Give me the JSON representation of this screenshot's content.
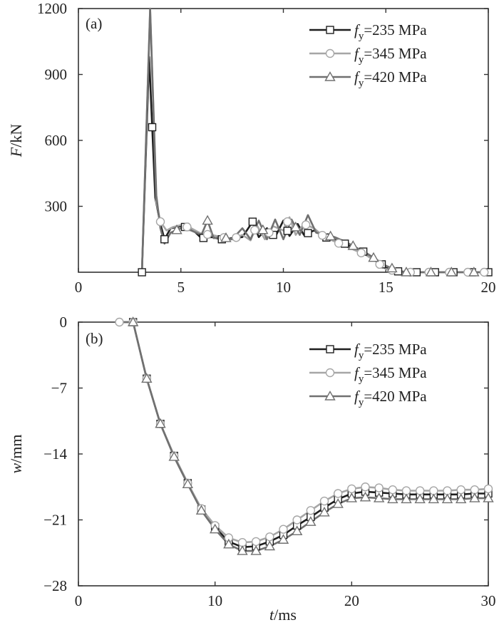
{
  "colors": {
    "s235": "#1e1e1e",
    "s345": "#a6a6a6",
    "s420": "#707070"
  },
  "legend": [
    {
      "key": "s235",
      "italic": "f",
      "sub": "y",
      "rest": "=235 MPa",
      "marker": "square"
    },
    {
      "key": "s345",
      "italic": "f",
      "sub": "y",
      "rest": "=345 MPa",
      "marker": "circle"
    },
    {
      "key": "s420",
      "italic": "f",
      "sub": "y",
      "rest": "=420 MPa",
      "marker": "triangle"
    }
  ],
  "chart_data": [
    {
      "panel_label": "(a)",
      "type": "line",
      "ylabel_italic": "F",
      "ylabel_rest": "/kN",
      "xlim": [
        0,
        20
      ],
      "ylim": [
        0,
        1200
      ],
      "xticks": [
        0,
        5,
        10,
        15,
        20
      ],
      "yticks": [
        300,
        600,
        900,
        1200
      ],
      "legend_position": "top-right",
      "grid": false,
      "series": [
        {
          "key": "s235",
          "name": "fy=235 MPa",
          "points": [
            [
              3.1,
              0
            ],
            [
              3.45,
              980
            ],
            [
              3.75,
              340
            ],
            [
              4.0,
              220
            ],
            [
              4.2,
              150
            ],
            [
              4.5,
              200
            ],
            [
              5,
              210
            ],
            [
              5.5,
              200
            ],
            [
              6,
              155
            ],
            [
              6.5,
              160
            ],
            [
              7,
              150
            ],
            [
              7.5,
              155
            ],
            [
              8,
              160
            ],
            [
              8.5,
              230
            ],
            [
              8.8,
              160
            ],
            [
              9.2,
              200
            ],
            [
              9.6,
              160
            ],
            [
              10,
              235
            ],
            [
              10.3,
              165
            ],
            [
              10.7,
              220
            ],
            [
              11,
              170
            ],
            [
              11.5,
              190
            ],
            [
              12,
              160
            ],
            [
              12.5,
              150
            ],
            [
              13,
              130
            ],
            [
              13.5,
              110
            ],
            [
              14,
              90
            ],
            [
              14.5,
              60
            ],
            [
              15,
              20
            ],
            [
              15.5,
              5
            ],
            [
              16,
              0
            ],
            [
              17,
              0
            ],
            [
              18,
              0
            ],
            [
              19,
              0
            ],
            [
              20,
              0
            ]
          ],
          "markers_x": [
            3.1,
            3.6,
            4.2,
            5.2,
            6.1,
            7.0,
            8.5,
            9.5,
            10.2,
            11.2,
            12.1,
            13.0,
            13.9,
            14.8,
            15.6,
            16.5,
            17.4,
            18.3,
            19.2,
            20
          ]
        },
        {
          "key": "s345",
          "name": "fy=345 MPa",
          "points": [
            [
              3.1,
              0
            ],
            [
              3.5,
              1200
            ],
            [
              3.8,
              320
            ],
            [
              4.0,
              230
            ],
            [
              4.3,
              190
            ],
            [
              4.6,
              205
            ],
            [
              5,
              215
            ],
            [
              5.5,
              200
            ],
            [
              6,
              175
            ],
            [
              6.5,
              170
            ],
            [
              7,
              160
            ],
            [
              7.5,
              150
            ],
            [
              8,
              170
            ],
            [
              8.4,
              145
            ],
            [
              8.7,
              215
            ],
            [
              9.1,
              150
            ],
            [
              9.5,
              210
            ],
            [
              10,
              190
            ],
            [
              10.3,
              250
            ],
            [
              10.6,
              170
            ],
            [
              11,
              220
            ],
            [
              11.5,
              200
            ],
            [
              12,
              160
            ],
            [
              12.5,
              140
            ],
            [
              13,
              120
            ],
            [
              13.5,
              100
            ],
            [
              14,
              80
            ],
            [
              14.5,
              50
            ],
            [
              15,
              15
            ],
            [
              15.5,
              5
            ],
            [
              16,
              0
            ],
            [
              17,
              0
            ],
            [
              18,
              0
            ],
            [
              19,
              0
            ],
            [
              20,
              0
            ]
          ],
          "markers_x": [
            4.0,
            5.3,
            6.3,
            7.1,
            7.7,
            8.6,
            9.3,
            10.2,
            11.1,
            11.9,
            12.7,
            13.8,
            14.7,
            15.3,
            16.2,
            17.1,
            18.1,
            19.0,
            19.8
          ]
        },
        {
          "key": "s420",
          "name": "fy=420 MPa",
          "points": [
            [
              3.1,
              0
            ],
            [
              3.5,
              1200
            ],
            [
              3.8,
              350
            ],
            [
              4.0,
              200
            ],
            [
              4.2,
              130
            ],
            [
              4.5,
              180
            ],
            [
              5,
              200
            ],
            [
              5.5,
              190
            ],
            [
              6,
              170
            ],
            [
              6.3,
              235
            ],
            [
              6.6,
              155
            ],
            [
              7,
              160
            ],
            [
              7.5,
              150
            ],
            [
              8,
              200
            ],
            [
              8.4,
              150
            ],
            [
              8.8,
              235
            ],
            [
              9.2,
              150
            ],
            [
              9.6,
              240
            ],
            [
              10,
              150
            ],
            [
              10.4,
              240
            ],
            [
              10.8,
              170
            ],
            [
              11.2,
              260
            ],
            [
              11.6,
              180
            ],
            [
              12,
              170
            ],
            [
              12.5,
              160
            ],
            [
              13,
              140
            ],
            [
              13.5,
              115
            ],
            [
              14,
              90
            ],
            [
              14.5,
              60
            ],
            [
              15,
              30
            ],
            [
              15.5,
              10
            ],
            [
              16,
              0
            ],
            [
              17,
              0
            ],
            [
              18,
              0
            ],
            [
              19,
              0
            ],
            [
              20,
              0
            ]
          ],
          "markers_x": [
            4.8,
            6.3,
            7.2,
            9.0,
            10.6,
            12.3,
            13.4,
            14.4,
            15.3,
            16.0,
            17.2,
            18.2,
            19.3
          ]
        }
      ]
    },
    {
      "panel_label": "(b)",
      "type": "line",
      "xlabel_italic": "t",
      "xlabel_rest": "/ms",
      "ylabel_italic": "w",
      "ylabel_rest": "/mm",
      "xlim": [
        0,
        30
      ],
      "ylim": [
        -28,
        0
      ],
      "xticks": [
        0,
        10,
        20,
        30
      ],
      "yticks": [
        0,
        -7,
        -14,
        -21,
        -28
      ],
      "ytick_labels": [
        "0",
        "−7",
        "−14",
        "−21",
        "−28"
      ],
      "legend_position": "top-right",
      "grid": false,
      "series": [
        {
          "key": "s235",
          "name": "fy=235 MPa",
          "points": [
            [
              2.8,
              0
            ],
            [
              3.5,
              0
            ],
            [
              4,
              0
            ],
            [
              5,
              -6
            ],
            [
              6,
              -10.8
            ],
            [
              7,
              -14.2
            ],
            [
              8,
              -17.1
            ],
            [
              9,
              -19.9
            ],
            [
              10,
              -21.8
            ],
            [
              11,
              -23.3
            ],
            [
              12,
              -23.9
            ],
            [
              13,
              -23.8
            ],
            [
              14,
              -23.3
            ],
            [
              15,
              -22.6
            ],
            [
              16,
              -21.6
            ],
            [
              17,
              -20.7
            ],
            [
              18,
              -19.7
            ],
            [
              19,
              -18.8
            ],
            [
              20,
              -18.2
            ],
            [
              21,
              -18.0
            ],
            [
              22,
              -18.1
            ],
            [
              23,
              -18.2
            ],
            [
              24,
              -18.3
            ],
            [
              25,
              -18.3
            ],
            [
              26,
              -18.3
            ],
            [
              27,
              -18.3
            ],
            [
              28,
              -18.3
            ],
            [
              29,
              -18.2
            ],
            [
              30,
              -18.2
            ]
          ],
          "markers_x": [
            4,
            5,
            6,
            7,
            8,
            9,
            10,
            11,
            12,
            13,
            14,
            15,
            16,
            17,
            18,
            19,
            20,
            21,
            22,
            23,
            24,
            25,
            26,
            27,
            28,
            29,
            30
          ]
        },
        {
          "key": "s345",
          "name": "fy=345 MPa",
          "points": [
            [
              2.8,
              0
            ],
            [
              3.5,
              0
            ],
            [
              4,
              0
            ],
            [
              5,
              -6
            ],
            [
              6,
              -10.8
            ],
            [
              7,
              -14.2
            ],
            [
              8,
              -17.1
            ],
            [
              9,
              -19.8
            ],
            [
              10,
              -21.6
            ],
            [
              11,
              -22.9
            ],
            [
              12,
              -23.4
            ],
            [
              13,
              -23.3
            ],
            [
              14,
              -22.8
            ],
            [
              15,
              -22.0
            ],
            [
              16,
              -21.0
            ],
            [
              17,
              -20.0
            ],
            [
              18,
              -19.0
            ],
            [
              19,
              -18.2
            ],
            [
              20,
              -17.7
            ],
            [
              21,
              -17.5
            ],
            [
              22,
              -17.6
            ],
            [
              23,
              -17.8
            ],
            [
              24,
              -17.9
            ],
            [
              25,
              -17.9
            ],
            [
              26,
              -17.9
            ],
            [
              27,
              -17.9
            ],
            [
              28,
              -17.8
            ],
            [
              29,
              -17.8
            ],
            [
              30,
              -17.7
            ]
          ],
          "markers_x": [
            3,
            4,
            5,
            6,
            7,
            8,
            9,
            10,
            11,
            12,
            13,
            14,
            15,
            16,
            17,
            18,
            19,
            20,
            21,
            22,
            23,
            24,
            25,
            26,
            27,
            28,
            29,
            30
          ]
        },
        {
          "key": "s420",
          "name": "fy=420 MPa",
          "points": [
            [
              2.8,
              0
            ],
            [
              3.5,
              0
            ],
            [
              4,
              0
            ],
            [
              5,
              -6
            ],
            [
              6,
              -10.8
            ],
            [
              7,
              -14.3
            ],
            [
              8,
              -17.2
            ],
            [
              9,
              -20.0
            ],
            [
              10,
              -22.0
            ],
            [
              11,
              -23.6
            ],
            [
              12,
              -24.3
            ],
            [
              13,
              -24.3
            ],
            [
              14,
              -23.8
            ],
            [
              15,
              -23.1
            ],
            [
              16,
              -22.2
            ],
            [
              17,
              -21.2
            ],
            [
              18,
              -20.2
            ],
            [
              19,
              -19.3
            ],
            [
              20,
              -18.7
            ],
            [
              21,
              -18.6
            ],
            [
              22,
              -18.7
            ],
            [
              23,
              -18.8
            ],
            [
              24,
              -18.8
            ],
            [
              25,
              -18.8
            ],
            [
              26,
              -18.8
            ],
            [
              27,
              -18.8
            ],
            [
              28,
              -18.8
            ],
            [
              29,
              -18.7
            ],
            [
              30,
              -18.7
            ]
          ],
          "markers_x": [
            4,
            5,
            6,
            7,
            8,
            9,
            10,
            11,
            12,
            13,
            14,
            15,
            16,
            17,
            18,
            19,
            20,
            21,
            22,
            23,
            24,
            25,
            26,
            27,
            28,
            29,
            30
          ]
        }
      ]
    }
  ]
}
